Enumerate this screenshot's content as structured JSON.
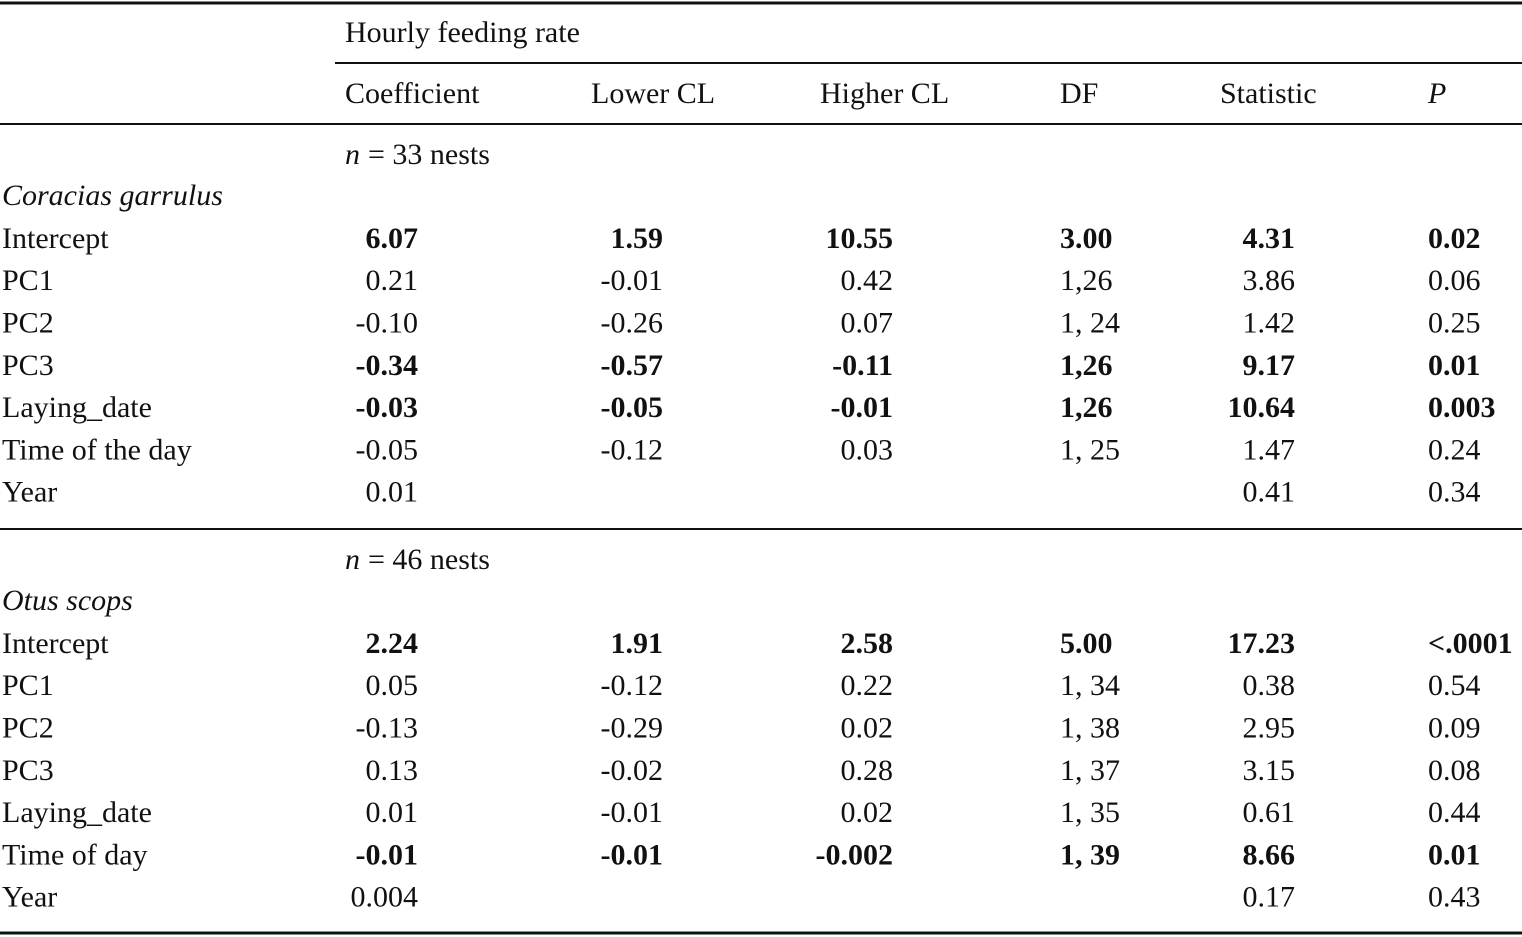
{
  "header": {
    "group_title": "Hourly feeding rate",
    "columns": [
      "Coefficient",
      "Lower CL",
      "Higher CL",
      "DF",
      "Statistic",
      "P"
    ]
  },
  "sections": [
    {
      "n_symbol": "n",
      "n_text": "= 33 nests",
      "species": "Coracias garrulus",
      "rows": [
        {
          "label": "Intercept",
          "bold": true,
          "cells": [
            "6.07",
            "1.59",
            "10.55",
            "3.00",
            "4.31",
            "0.02"
          ]
        },
        {
          "label": "PC1",
          "bold": false,
          "cells": [
            "0.21",
            "-0.01",
            "0.42",
            "1,26",
            "3.86",
            "0.06"
          ]
        },
        {
          "label": "PC2",
          "bold": false,
          "cells": [
            "-0.10",
            "-0.26",
            "0.07",
            "1, 24",
            "1.42",
            "0.25"
          ]
        },
        {
          "label": "PC3",
          "bold": true,
          "cells": [
            "-0.34",
            "-0.57",
            "-0.11",
            "1,26",
            "9.17",
            "0.01"
          ]
        },
        {
          "label": "Laying_date",
          "bold": true,
          "cells": [
            "-0.03",
            "-0.05",
            "-0.01",
            "1,26",
            "10.64",
            "0.003"
          ]
        },
        {
          "label": "Time of the day",
          "bold": false,
          "cells": [
            "-0.05",
            "-0.12",
            "0.03",
            "1, 25",
            "1.47",
            "0.24"
          ]
        },
        {
          "label": "Year",
          "bold": false,
          "cells": [
            "0.01",
            null,
            null,
            null,
            "0.41",
            "0.34"
          ]
        }
      ]
    },
    {
      "n_symbol": "n",
      "n_text": "= 46 nests",
      "species": "Otus scops",
      "rows": [
        {
          "label": "Intercept",
          "bold": true,
          "cells": [
            "2.24",
            "1.91",
            "2.58",
            "5.00",
            "17.23",
            "<.0001"
          ]
        },
        {
          "label": "PC1",
          "bold": false,
          "cells": [
            "0.05",
            "-0.12",
            "0.22",
            "1, 34",
            "0.38",
            "0.54"
          ]
        },
        {
          "label": "PC2",
          "bold": false,
          "cells": [
            "-0.13",
            "-0.29",
            "0.02",
            "1, 38",
            "2.95",
            "0.09"
          ]
        },
        {
          "label": "PC3",
          "bold": false,
          "cells": [
            "0.13",
            "-0.02",
            "0.28",
            "1, 37",
            "3.15",
            "0.08"
          ]
        },
        {
          "label": "Laying_date",
          "bold": false,
          "cells": [
            "0.01",
            "-0.01",
            "0.02",
            "1, 35",
            "0.61",
            "0.44"
          ]
        },
        {
          "label": "Time of day",
          "bold": true,
          "cells": [
            "-0.01",
            "-0.01",
            "-0.002",
            "1, 39",
            "8.66",
            "0.01"
          ]
        },
        {
          "label": "Year",
          "bold": false,
          "cells": [
            "0.004",
            null,
            null,
            null,
            "0.17",
            "0.43"
          ]
        }
      ]
    }
  ]
}
